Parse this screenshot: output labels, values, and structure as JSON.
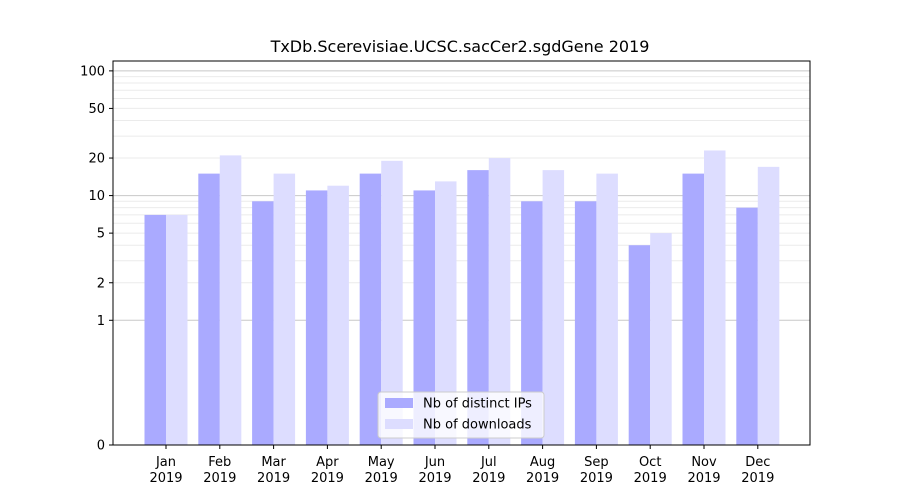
{
  "chart_data": {
    "type": "bar",
    "title": "TxDb.Scerevisiae.UCSC.sacCer2.sgdGene 2019",
    "xlabel": "",
    "ylabel": "",
    "y_scale": "symlog",
    "y_ticks": [
      "0",
      "1",
      "2",
      "5",
      "10",
      "20",
      "50",
      "100"
    ],
    "ylim": [
      0,
      120
    ],
    "categories": [
      "Jan\n2019",
      "Feb\n2019",
      "Mar\n2019",
      "Apr\n2019",
      "May\n2019",
      "Jun\n2019",
      "Jul\n2019",
      "Aug\n2019",
      "Sep\n2019",
      "Oct\n2019",
      "Nov\n2019",
      "Dec\n2019"
    ],
    "series": [
      {
        "name": "Nb of distinct IPs",
        "color": "#aaaaff",
        "values": [
          7,
          15,
          9,
          11,
          15,
          11,
          16,
          9,
          9,
          4,
          15,
          8
        ]
      },
      {
        "name": "Nb of downloads",
        "color": "#ddddff",
        "values": [
          7,
          21,
          15,
          12,
          19,
          13,
          20,
          16,
          15,
          5,
          23,
          17
        ]
      }
    ],
    "legend_position": "bottom-center",
    "grid": "horizontal"
  }
}
